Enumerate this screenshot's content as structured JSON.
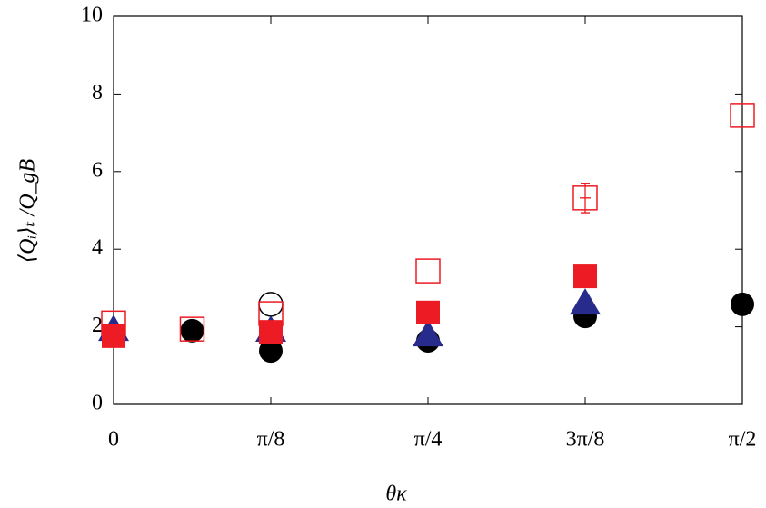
{
  "chart_data": {
    "type": "scatter",
    "xlabel": "θκ",
    "ylabel": "⟨Qᵢ⟩ₜ /Q_gB",
    "xlim": [
      0,
      1.5708
    ],
    "ylim": [
      0,
      10
    ],
    "xticks": [
      0,
      {
        "value": 0.3927,
        "label": "π/8"
      },
      {
        "value": 0.7854,
        "label": "π/4"
      },
      {
        "value": 1.1781,
        "label": "3π/8"
      },
      {
        "value": 1.5708,
        "label": "π/2"
      }
    ],
    "yticks": [
      0,
      2,
      4,
      6,
      8,
      10
    ],
    "series": [
      {
        "marker": "circle",
        "filled": true,
        "color": "#000000",
        "x": [
          0.1963,
          0.3927,
          0.7854,
          1.1781,
          1.5708
        ],
        "values": [
          1.9,
          1.38,
          1.64,
          2.27,
          2.58
        ]
      },
      {
        "marker": "circle",
        "filled": false,
        "color": "#000000",
        "x": [
          0.3927
        ],
        "values": [
          2.58
        ]
      },
      {
        "marker": "triangle",
        "filled": true,
        "color": "#262b8c",
        "x": [
          0,
          0.3927,
          0.7854,
          1.1781
        ],
        "values": [
          1.94,
          1.92,
          1.8,
          2.62
        ]
      },
      {
        "marker": "square",
        "filled": true,
        "color": "#ed1c24",
        "x": [
          0,
          0.3927,
          0.7854,
          1.1781
        ],
        "values": [
          1.76,
          1.87,
          2.37,
          3.3
        ]
      },
      {
        "marker": "square",
        "filled": false,
        "color": "#ed1c24",
        "x": [
          0,
          0.1963,
          0.3927,
          0.7854,
          1.1781,
          1.5708
        ],
        "values": [
          2.1,
          1.94,
          2.34,
          3.44,
          5.32,
          7.45
        ],
        "errors": [
          null,
          null,
          null,
          null,
          0.38,
          null
        ]
      }
    ]
  }
}
